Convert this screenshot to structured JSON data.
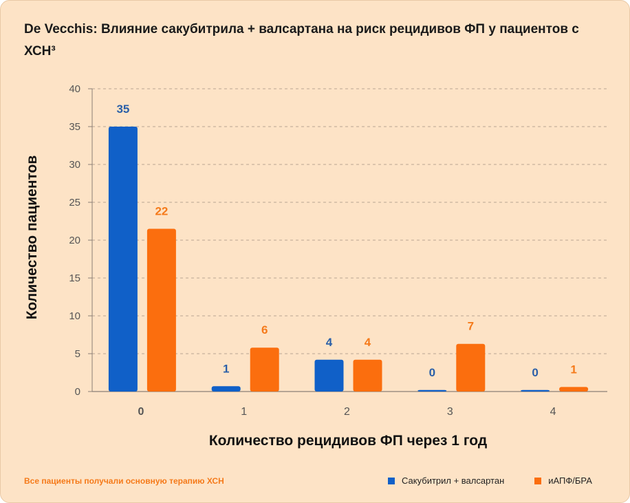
{
  "title": "De Vecchis: Влияние сакубитрила + валсартана на риск рецидивов ФП у пациентов с ХСН³",
  "footnote": "Все пациенты получали основную терапию ХСН",
  "colors": {
    "series1": "#1060c8",
    "series2": "#fb6e0e",
    "series1_label": "#2a5fa8",
    "series2_label": "#f57a1a",
    "grid": "#b9a592",
    "axis": "#8a7f76",
    "tick": "#555555",
    "background": "#fde3c6"
  },
  "chart_data": {
    "type": "bar",
    "title": "De Vecchis: Влияние сакубитрила + валсартана на риск рецидивов ФП у пациентов с ХСН³",
    "xlabel": "Количество рецидивов ФП через 1 год",
    "ylabel": "Количество пациентов",
    "categories": [
      "0",
      "1",
      "2",
      "3",
      "4"
    ],
    "ylim": [
      0,
      40
    ],
    "yticks": [
      0,
      5,
      10,
      15,
      20,
      25,
      30,
      35,
      40
    ],
    "grid": true,
    "legend": "bottom-right",
    "series": [
      {
        "name": "Сакубитрил + валсартан",
        "values": [
          35,
          1,
          4,
          0,
          0
        ],
        "bar_values": [
          35,
          0.7,
          4.2,
          0.2,
          0.2
        ],
        "labels": [
          "35",
          "1",
          "4",
          "0",
          "0"
        ]
      },
      {
        "name": "иАПФ/БРА",
        "values": [
          22,
          6,
          4,
          7,
          1
        ],
        "bar_values": [
          21.5,
          5.8,
          4.2,
          6.3,
          0.6
        ],
        "labels": [
          "22",
          "6",
          "4",
          "7",
          "1"
        ]
      }
    ]
  }
}
